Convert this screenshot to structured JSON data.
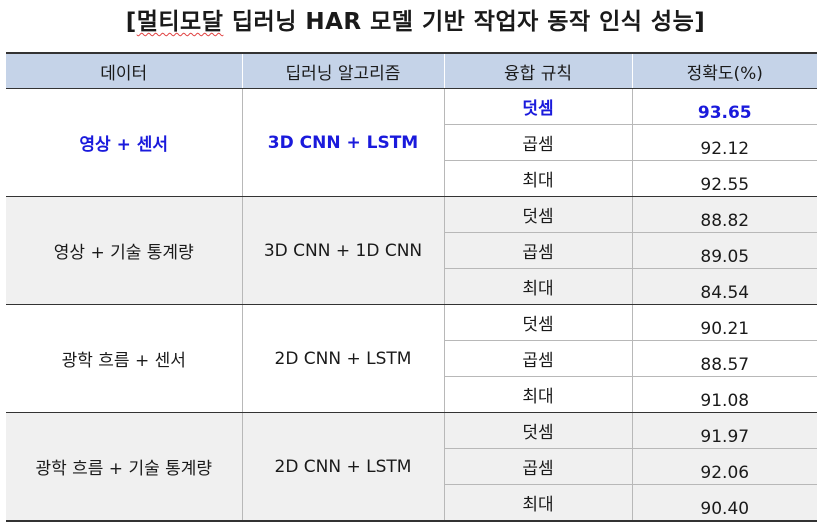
{
  "title": {
    "open_bracket": "[",
    "underlined": "멀티모달",
    "rest": " 딥러닝 HAR 모델 기반 작업자 동작 인식 성능]"
  },
  "table": {
    "headers": [
      "데이터",
      "딥러닝 알고리즘",
      "융합 규칙",
      "정확도(%)"
    ],
    "groups": [
      {
        "data": "영상 + 센서",
        "algorithm": "3D CNN + LSTM",
        "highlight_color": "#1a1adc",
        "rows": [
          {
            "rule": "덧셈",
            "accuracy": "93.65"
          },
          {
            "rule": "곱셈",
            "accuracy": "92.12"
          },
          {
            "rule": "최대",
            "accuracy": "92.55"
          }
        ]
      },
      {
        "data": "영상 + 기술 통계량",
        "algorithm": "3D CNN + 1D CNN",
        "rows": [
          {
            "rule": "덧셈",
            "accuracy": "88.82"
          },
          {
            "rule": "곱셈",
            "accuracy": "89.05"
          },
          {
            "rule": "최대",
            "accuracy": "84.54"
          }
        ]
      },
      {
        "data": "광학 흐름 + 센서",
        "algorithm": "2D CNN + LSTM",
        "rows": [
          {
            "rule": "덧셈",
            "accuracy": "90.21"
          },
          {
            "rule": "곱셈",
            "accuracy": "88.57"
          },
          {
            "rule": "최대",
            "accuracy": "91.08"
          }
        ]
      },
      {
        "data": "광학 흐름 + 기술 통계량",
        "algorithm": "2D CNN + LSTM",
        "rows": [
          {
            "rule": "덧셈",
            "accuracy": "91.97"
          },
          {
            "rule": "곱셈",
            "accuracy": "92.06"
          },
          {
            "rule": "최대",
            "accuracy": "90.40"
          }
        ]
      }
    ]
  },
  "colors": {
    "header_background": "#c5d3e8",
    "shaded_background": "#f0f0f0",
    "highlight_text": "#1a1adc"
  }
}
